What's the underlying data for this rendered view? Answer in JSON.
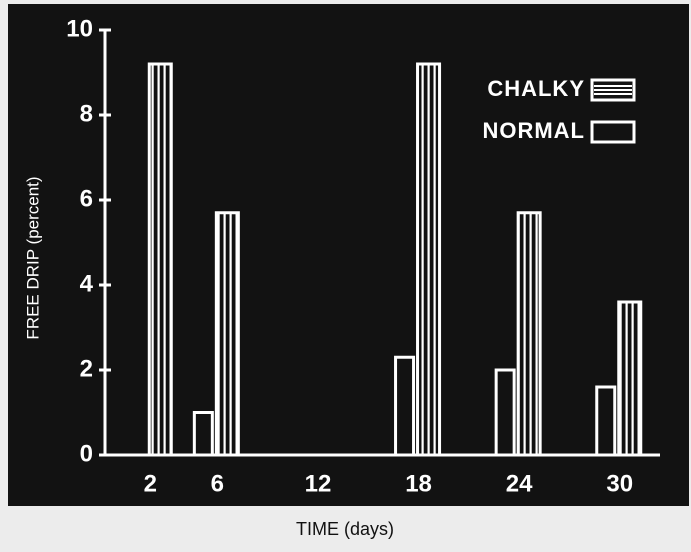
{
  "chart_data": {
    "type": "bar",
    "x_label": "TIME (days)",
    "y_label": "FREE DRIP (percent)",
    "x": [
      2,
      6,
      12,
      18,
      24,
      30
    ],
    "xlim": [
      -0.7,
      32.4
    ],
    "xticks": [
      2,
      6,
      12,
      18,
      24,
      30
    ],
    "ylim": [
      0,
      10
    ],
    "yticks": [
      0,
      2,
      4,
      6,
      8,
      10
    ],
    "series": [
      {
        "name": "CHALKY",
        "color": "#ffffff",
        "values": [
          9.2,
          5.7,
          null,
          9.2,
          5.7,
          3.6
        ]
      },
      {
        "name": "NORMAL",
        "color": "#ffffff",
        "values": [
          null,
          1.0,
          null,
          2.3,
          2.0,
          1.6
        ]
      }
    ]
  }
}
